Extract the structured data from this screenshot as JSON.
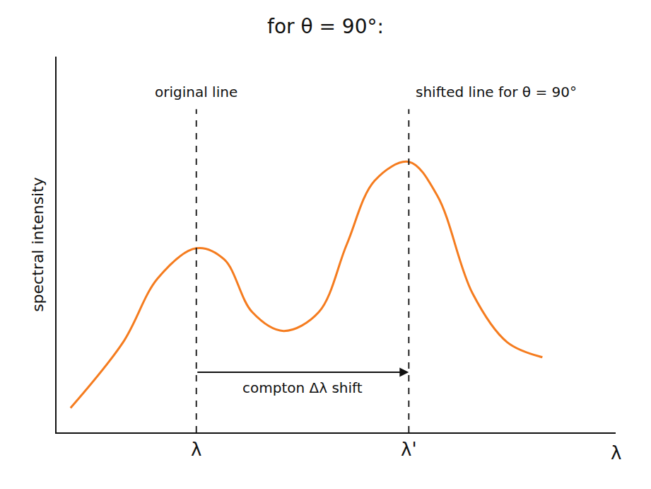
{
  "chart_data": {
    "type": "line",
    "title": "for θ = 90°:",
    "x_label": "λ",
    "y_label": "spectral intensity",
    "x": [
      0.25,
      1.19,
      1.81,
      2.5,
      3.0,
      3.5,
      4.06,
      4.69,
      5.19,
      5.69,
      6.3,
      6.81,
      7.44,
      8.06,
      8.69
    ],
    "values": [
      0.65,
      2.4,
      4.1,
      4.9,
      4.6,
      3.2,
      2.7,
      3.2,
      5.0,
      6.7,
      7.2,
      6.3,
      3.7,
      2.4,
      2.0
    ],
    "color": "#f57c1f",
    "xlim": [
      0,
      10
    ],
    "ylim": [
      0,
      10
    ],
    "xticks": [
      {
        "value": 2.5,
        "label": "λ"
      },
      {
        "value": 6.3,
        "label": "λ'"
      }
    ],
    "tick_labels": "x",
    "grid": false,
    "annotations": [
      "original line",
      "shifted line for θ = 90°",
      "compton Δλ shift"
    ]
  }
}
